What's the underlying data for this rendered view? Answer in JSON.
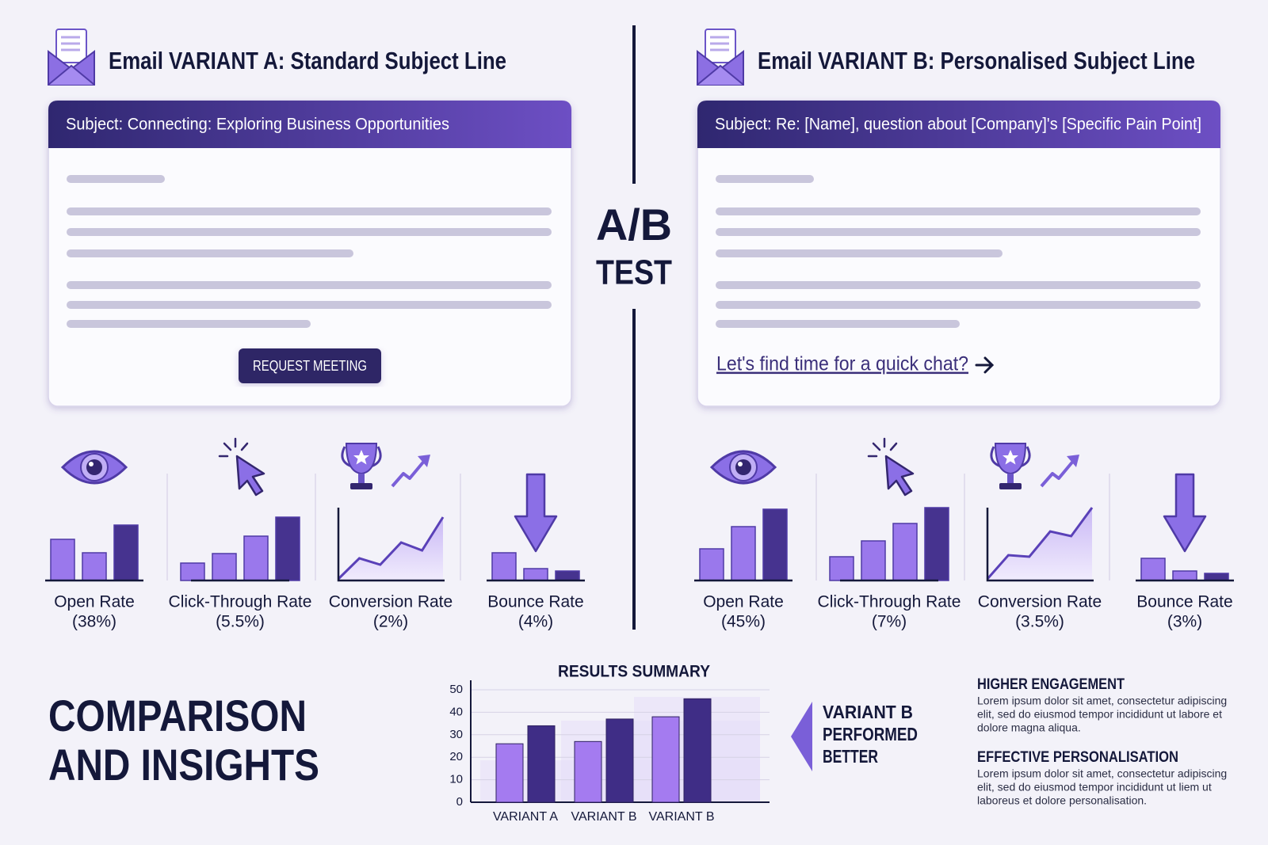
{
  "center": {
    "line1": "A/B",
    "line2": "TEST"
  },
  "variants": [
    {
      "title": "Email VARIANT A: Standard Subject Line",
      "subject": "Subject: Connecting: Exploring Business Opportunities",
      "cta": "REQUEST MEETING",
      "metrics": [
        {
          "name": "Open Rate",
          "value": "(38%)"
        },
        {
          "name": "Click-Through Rate",
          "value": "(5.5%)"
        },
        {
          "name": "Conversion Rate",
          "value": "(2%)"
        },
        {
          "name": "Bounce Rate",
          "value": "(4%)"
        }
      ]
    },
    {
      "title": "Email VARIANT B: Personalised Subject Line",
      "subject": "Subject: Re: [Name], question about [Company]'s [Specific Pain Point]",
      "cta": "Let's find time for a quick chat?",
      "metrics": [
        {
          "name": "Open Rate",
          "value": "(45%)"
        },
        {
          "name": "Click-Through Rate",
          "value": "(7%)"
        },
        {
          "name": "Conversion Rate",
          "value": "(3.5%)"
        },
        {
          "name": "Bounce Rate",
          "value": "(3%)"
        }
      ]
    }
  ],
  "insights_heading": {
    "line1": "COMPARISON",
    "line2": "AND INSIGHTS"
  },
  "callout": [
    "VARIANT B",
    "PERFORMED",
    "BETTER"
  ],
  "insights": [
    {
      "heading": "HIGHER ENGAGEMENT",
      "lines": [
        "Lorem ipsum dolor sit amet, consectetur adipiscing",
        "elit, sed do eiusmod tempor incididunt ut labore et",
        "dolore magna aliqua."
      ]
    },
    {
      "heading": "EFFECTIVE PERSONALISATION",
      "lines": [
        "Lorem ipsum dolor sit amet, consectetur adipiscing",
        "elit, sed do eiusmod tempor incididunt ut liem ut",
        "laboreus et dolore personalisation."
      ]
    }
  ],
  "chart_data": {
    "type": "bar",
    "title": "RESULTS SUMMARY",
    "categories": [
      "VARIANT A",
      "VARIANT B",
      "VARIANT B"
    ],
    "series": [
      {
        "color": "#a47bf0",
        "values": [
          26,
          27,
          38
        ]
      },
      {
        "color": "#3f2d86",
        "values": [
          34,
          37,
          46
        ]
      }
    ],
    "ylim": [
      0,
      50
    ],
    "yticks": [
      0,
      10,
      20,
      30,
      40,
      50
    ],
    "grid": true
  }
}
